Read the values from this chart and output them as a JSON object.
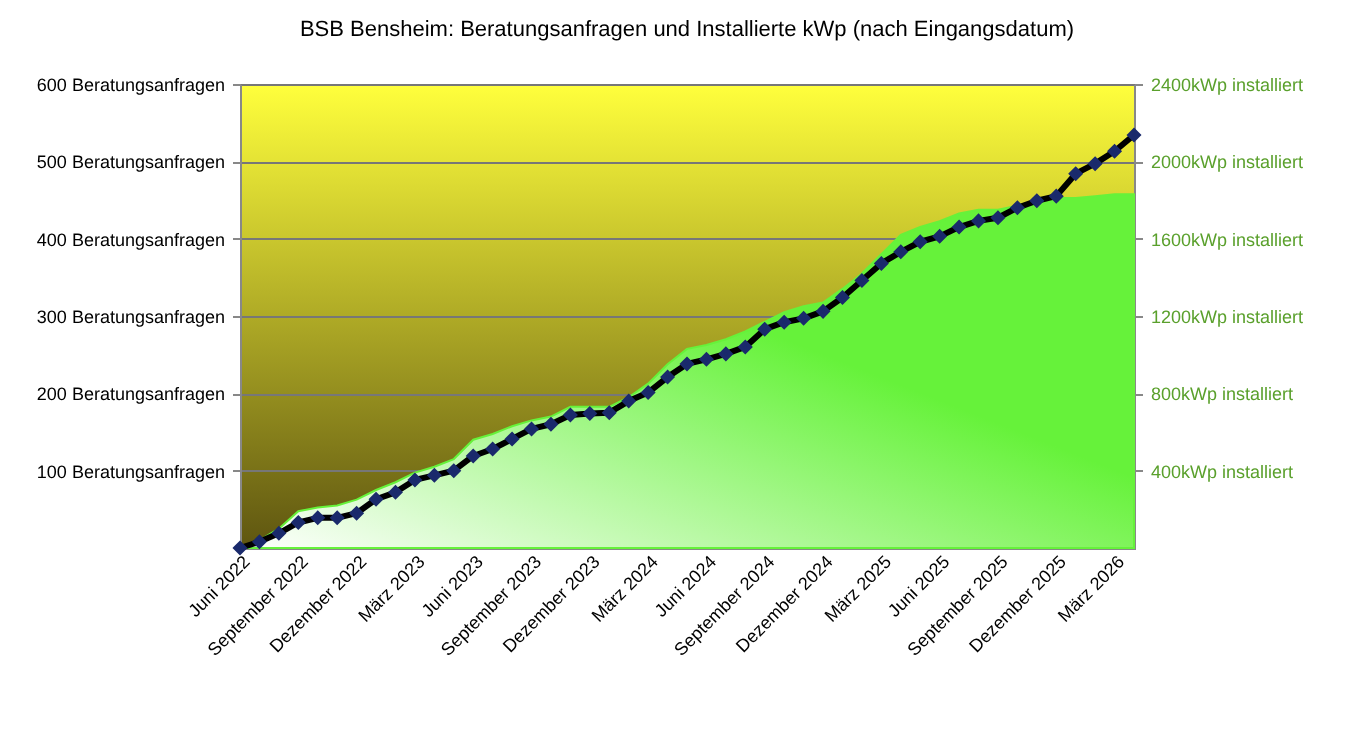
{
  "chart_data": {
    "type": "line",
    "title": "BSB Bensheim: Beratungsanfragen und Installierte kWp (nach Eingangsdatum)",
    "categories": [
      "Juni 2022",
      null,
      null,
      "September 2022",
      null,
      null,
      "Dezember 2022",
      null,
      null,
      "März 2023",
      null,
      null,
      "Juni 2023",
      null,
      null,
      "September 2023",
      null,
      null,
      "Dezember 2023",
      null,
      null,
      "März 2024",
      null,
      null,
      "Juni 2024",
      null,
      null,
      "September 2024",
      null,
      null,
      "Dezember 2024",
      null,
      null,
      "März 2025",
      null,
      null,
      "Juni 2025",
      null,
      null,
      "September 2025",
      null,
      null,
      "Dezember 2025",
      null,
      null,
      "März 2026",
      null
    ],
    "series": [
      {
        "type": "area",
        "axis": "y2",
        "color": "#66f23a",
        "values": [
          0,
          40,
          100,
          190,
          210,
          220,
          250,
          300,
          340,
          390,
          420,
          460,
          560,
          590,
          630,
          660,
          680,
          730,
          730,
          730,
          780,
          850,
          950,
          1030,
          1050,
          1080,
          1120,
          1170,
          1220,
          1250,
          1270,
          1340,
          1420,
          1520,
          1620,
          1660,
          1690,
          1730,
          1750,
          1750,
          1770,
          1800,
          1810,
          1810,
          1820,
          1830,
          1830
        ]
      },
      {
        "color": "#000000",
        "marker": "diamond",
        "values": [
          0,
          8,
          19,
          33,
          39,
          39,
          45,
          63,
          72,
          88,
          94,
          100,
          119,
          128,
          141,
          154,
          160,
          172,
          174,
          175,
          190,
          201,
          221,
          238,
          244,
          251,
          260,
          283,
          292,
          297,
          306,
          324,
          346,
          368,
          383,
          396,
          403,
          415,
          423,
          427,
          440,
          449,
          455,
          484,
          497,
          513,
          534
        ]
      }
    ],
    "ylim": [
      0,
      600
    ],
    "yticks": [
      {
        "value": 100,
        "label": "100 Beratungsanfragen"
      },
      {
        "value": 200,
        "label": "200 Beratungsanfragen"
      },
      {
        "value": 300,
        "label": "300 Beratungsanfragen"
      },
      {
        "value": 400,
        "label": "400 Beratungsanfragen"
      },
      {
        "value": 500,
        "label": "500 Beratungsanfragen"
      },
      {
        "value": 600,
        "label": "600 Beratungsanfragen"
      }
    ],
    "y2lim": [
      0,
      2400
    ],
    "y2ticks": [
      {
        "value": 400,
        "label": "400kWp installiert"
      },
      {
        "value": 800,
        "label": "800kWp installiert"
      },
      {
        "value": 1200,
        "label": "1200kWp installiert"
      },
      {
        "value": 1600,
        "label": "1600kWp installiert"
      },
      {
        "value": 2000,
        "label": "2000kWp installiert"
      },
      {
        "value": 2400,
        "label": "2400kWp installiert"
      }
    ],
    "grid": "y",
    "line_style": "solid"
  }
}
